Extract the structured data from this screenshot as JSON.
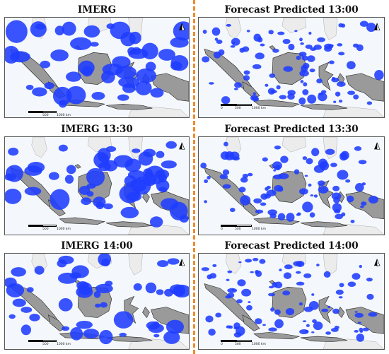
{
  "panels": [
    {
      "title": "IMERG",
      "scale": {
        "ticks": [
          "0",
          "500",
          "1000 km"
        ]
      }
    },
    {
      "title": "Forecast Predicted 13:00",
      "scale": {
        "ticks": [
          "0",
          "500",
          "1000 km"
        ]
      }
    },
    {
      "title": "IMERG 13:30",
      "scale": {
        "ticks": [
          "0",
          "500",
          "1000 km"
        ]
      }
    },
    {
      "title": "Forecast Predicted 13:30",
      "scale": {
        "ticks": [
          "0",
          "500",
          "1000 km"
        ]
      }
    },
    {
      "title": "IMERG 14:00",
      "scale": {
        "ticks": [
          "0",
          "500",
          "1000 km"
        ]
      }
    },
    {
      "title": "Forecast Predicted 14:00",
      "scale": {
        "ticks": [
          "0",
          "500",
          "1000 km"
        ]
      }
    }
  ],
  "colors": {
    "precipitation": "#1f3cff",
    "land": "#9a9a9a",
    "neighbor_land": "#ececec",
    "sea": "#f4f8fc",
    "divider": "#f08a2c"
  },
  "icons": {
    "north_arrow": "north-arrow-icon"
  }
}
